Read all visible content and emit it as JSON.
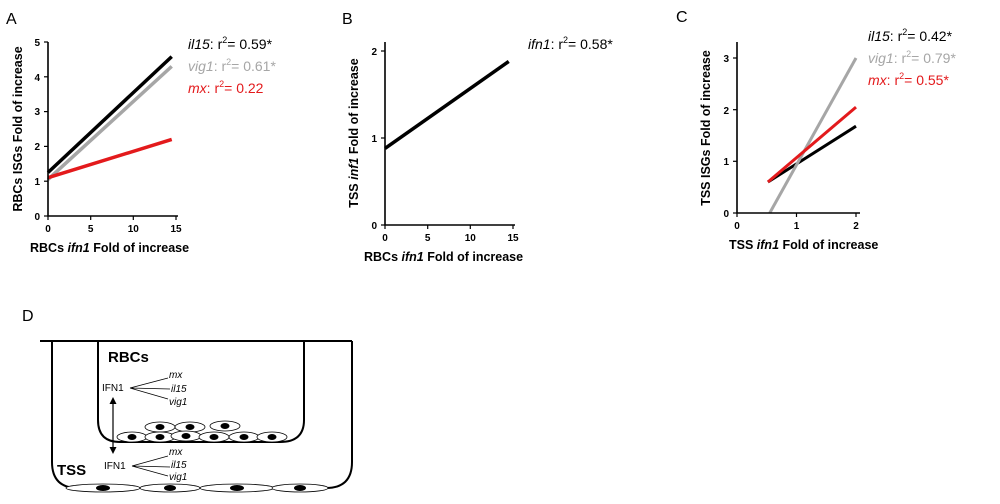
{
  "panels": {
    "A": {
      "letter": "A",
      "xlabel_pre": "RBCs ",
      "xlabel_gene": "ifn1",
      "xlabel_post": " Fold of increase",
      "ylabel": "RBCs ISGs Fold of increase",
      "xticks": [
        "0",
        "5",
        "10",
        "15"
      ],
      "yticks": [
        "0",
        "1",
        "2",
        "3",
        "4",
        "5"
      ],
      "legend": [
        {
          "gene": "il15",
          "stat": ": r",
          "sup": "2",
          "val": "= 0.59*",
          "color": "#000000"
        },
        {
          "gene": "vig1",
          "stat": ": r",
          "sup": "2",
          "val": "= 0.61*",
          "color": "#a6a6a6"
        },
        {
          "gene": "mx",
          "stat": ": r",
          "sup": "2",
          "val": "= 0.22",
          "color": "#e31a1c"
        }
      ]
    },
    "B": {
      "letter": "B",
      "xlabel_pre": "RBCs ",
      "xlabel_gene": "ifn1",
      "xlabel_post": " Fold of increase",
      "ylabel_pre": "TSS ",
      "ylabel_gene": "inf1",
      "ylabel_post": " Fold of increase",
      "xticks": [
        "0",
        "5",
        "10",
        "15"
      ],
      "yticks": [
        "0",
        "1",
        "2"
      ],
      "legend": [
        {
          "gene": "ifn1",
          "stat": ": r",
          "sup": "2",
          "val": "= 0.58*",
          "color": "#000000"
        }
      ]
    },
    "C": {
      "letter": "C",
      "xlabel_pre": "TSS ",
      "xlabel_gene": "ifn1",
      "xlabel_post": " Fold of increase",
      "ylabel": "TSS ISGs Fold of increase",
      "xticks": [
        "0",
        "1",
        "2"
      ],
      "yticks": [
        "0",
        "1",
        "2",
        "3"
      ],
      "legend": [
        {
          "gene": "il15",
          "stat": ": r",
          "sup": "2",
          "val": "= 0.42*",
          "color": "#000000"
        },
        {
          "gene": "vig1",
          "stat": ": r",
          "sup": "2",
          "val": "= 0.79*",
          "color": "#a6a6a6"
        },
        {
          "gene": "mx",
          "stat": ": r",
          "sup": "2",
          "val": "= 0.55*",
          "color": "#e31a1c"
        }
      ]
    },
    "D": {
      "letter": "D",
      "upper_label": "RBCs",
      "lower_label": "TSS",
      "ifn_upper": "IFN1",
      "ifn_lower": "IFN1",
      "genes_upper": [
        "mx",
        "il15",
        "vig1"
      ],
      "genes_lower": [
        "mx",
        "il15",
        "vig1"
      ]
    }
  },
  "chart_data": [
    {
      "type": "line",
      "panel": "A",
      "xlabel": "RBCs ifn1 Fold of increase",
      "ylabel": "RBCs ISGs Fold of increase",
      "xlim": [
        0,
        15
      ],
      "ylim": [
        0,
        5
      ],
      "series": [
        {
          "name": "il15",
          "color": "#000000",
          "x": [
            0,
            14.5
          ],
          "y": [
            1.25,
            4.58
          ],
          "r2": "0.59*"
        },
        {
          "name": "vig1",
          "color": "#a6a6a6",
          "x": [
            0,
            14.5
          ],
          "y": [
            1.05,
            4.3
          ],
          "r2": "0.61*"
        },
        {
          "name": "mx",
          "color": "#e31a1c",
          "x": [
            0,
            14.5
          ],
          "y": [
            1.1,
            2.2
          ],
          "r2": "0.22"
        }
      ]
    },
    {
      "type": "line",
      "panel": "B",
      "xlabel": "RBCs ifn1 Fold of increase",
      "ylabel": "TSS inf1 Fold of increase",
      "xlim": [
        0,
        15
      ],
      "ylim": [
        0,
        2
      ],
      "series": [
        {
          "name": "ifn1",
          "color": "#000000",
          "x": [
            0,
            14.5
          ],
          "y": [
            0.88,
            1.88
          ],
          "r2": "0.58*"
        }
      ]
    },
    {
      "type": "line",
      "panel": "C",
      "xlabel": "TSS ifn1 Fold of increase",
      "ylabel": "TSS ISGs Fold of increase",
      "xlim": [
        0,
        2
      ],
      "ylim": [
        0,
        3
      ],
      "series": [
        {
          "name": "il15",
          "color": "#000000",
          "x": [
            0.52,
            2.0
          ],
          "y": [
            0.6,
            1.68
          ],
          "r2": "0.42*"
        },
        {
          "name": "vig1",
          "color": "#a6a6a6",
          "x": [
            0.55,
            2.0
          ],
          "y": [
            0.0,
            3.0
          ],
          "r2": "0.79*"
        },
        {
          "name": "mx",
          "color": "#e31a1c",
          "x": [
            0.52,
            2.0
          ],
          "y": [
            0.6,
            2.05
          ],
          "r2": "0.55*"
        }
      ]
    }
  ]
}
